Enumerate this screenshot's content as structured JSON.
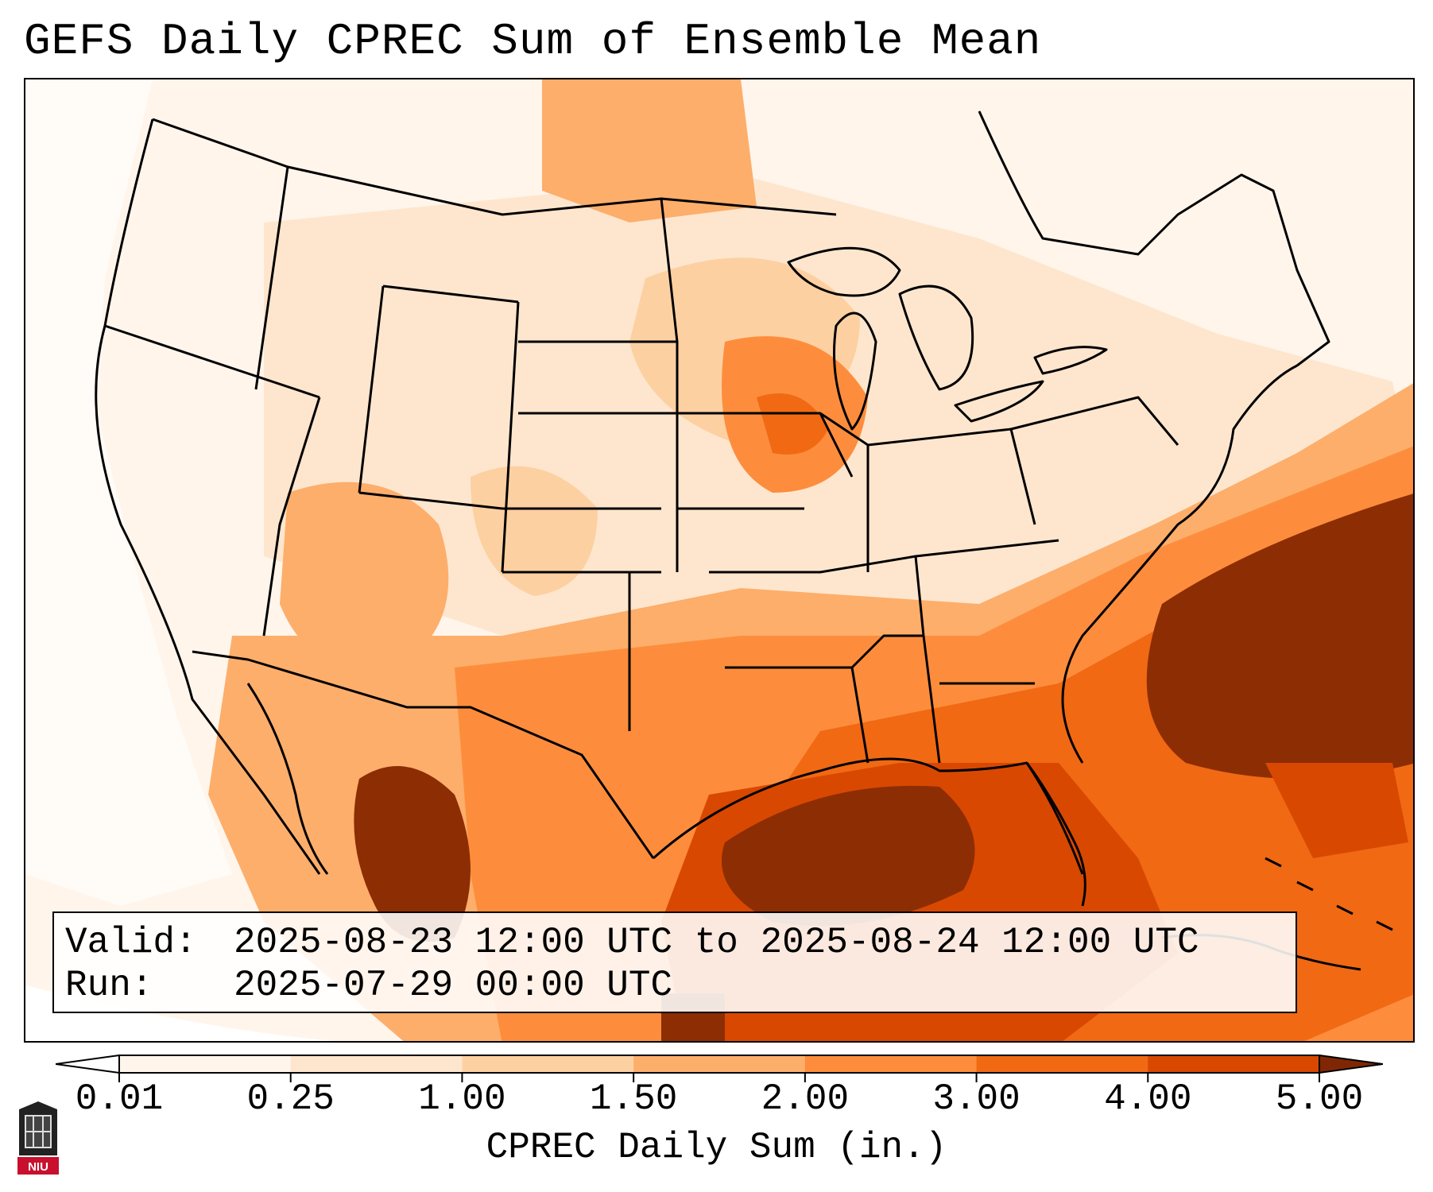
{
  "title": "GEFS Daily CPREC Sum of Ensemble Mean",
  "valid_label": "Valid:",
  "valid_value": "2025-08-23 12:00 UTC to 2025-08-24 12:00 UTC",
  "run_label": "Run:",
  "run_value": "2025-07-29 00:00 UTC",
  "colorbar": {
    "title": "CPREC Daily Sum (in.)",
    "ticks": [
      "0.01",
      "0.25",
      "1.00",
      "1.50",
      "2.00",
      "3.00",
      "4.00",
      "5.00"
    ],
    "colors": [
      "#fff5eb",
      "#fee6ce",
      "#fdd0a2",
      "#fdae6b",
      "#fd8d3c",
      "#f16913",
      "#d94801",
      "#8c2d04"
    ],
    "under_color": "#ffffff",
    "over_color": "#7f2704"
  },
  "logo_text": "NIU",
  "map_colors": {
    "background": "#fff5eb",
    "light": "#fee6ce",
    "medium_light": "#fdd0a2",
    "medium": "#fdae6b",
    "orange": "#fd8d3c",
    "dark_orange": "#f16913",
    "deep_orange": "#d94801",
    "brown": "#8c2d04",
    "outline": "#000000"
  }
}
